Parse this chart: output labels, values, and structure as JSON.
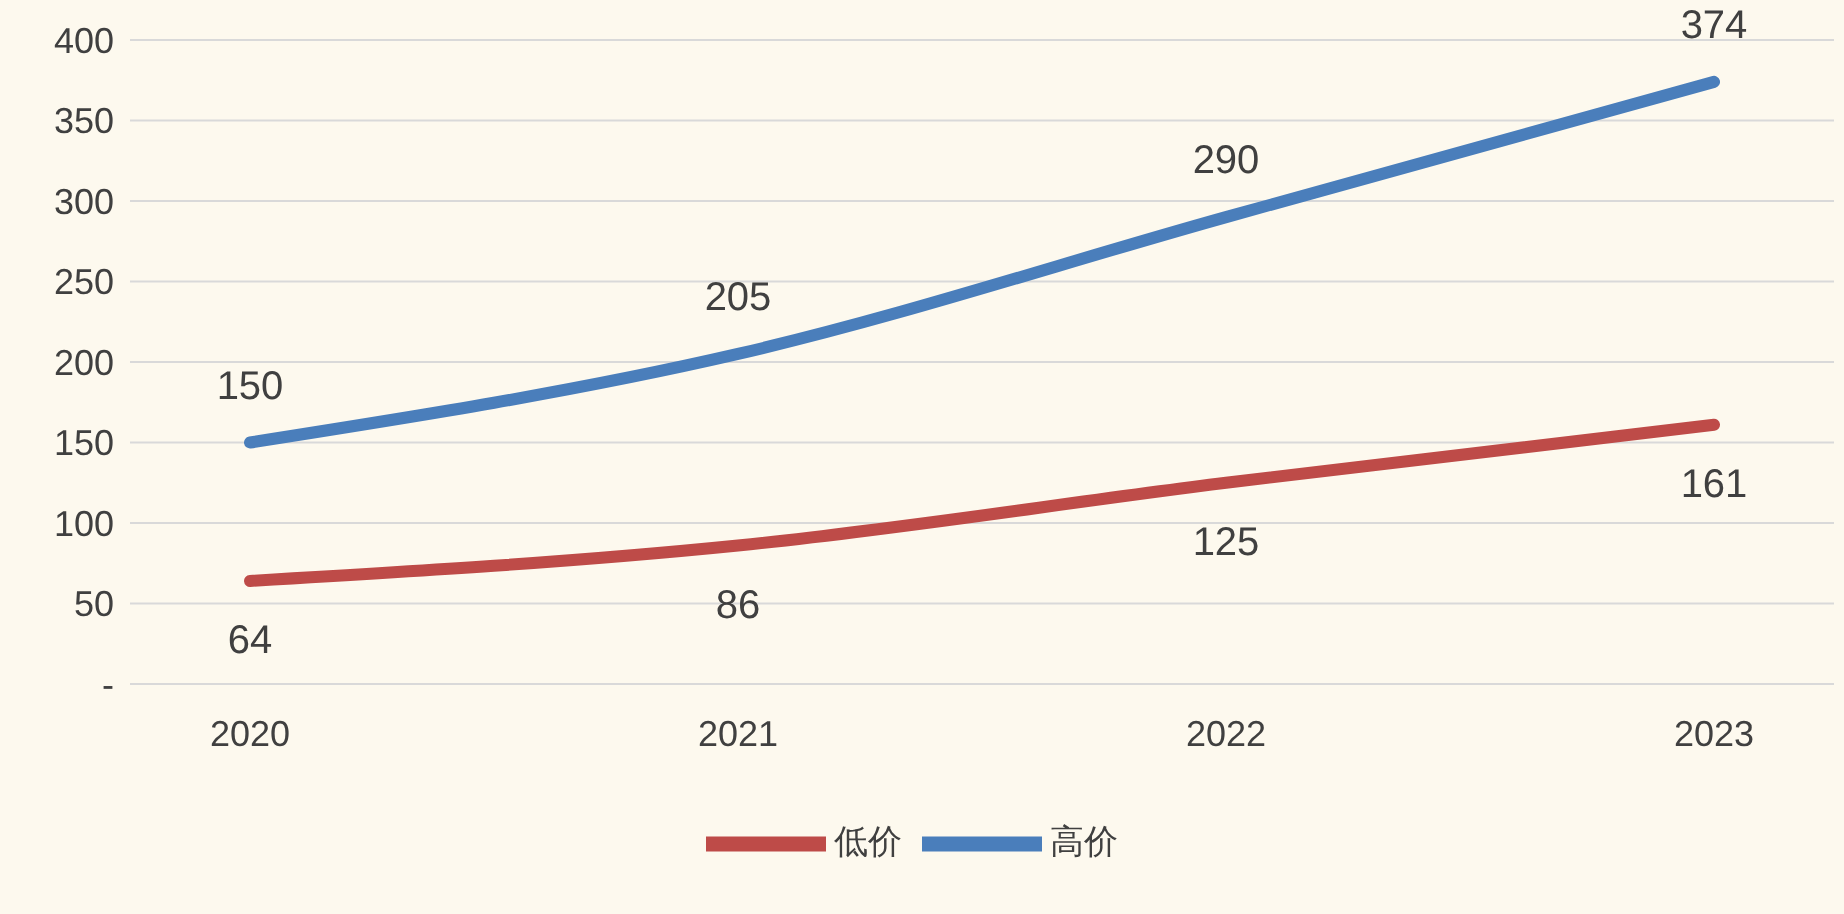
{
  "chart_data": {
    "type": "line",
    "categories": [
      "2020",
      "2021",
      "2022",
      "2023"
    ],
    "series": [
      {
        "name": "高价",
        "color": "#4a7ebb",
        "values": [
          150,
          205,
          290,
          374
        ]
      },
      {
        "name": "低价",
        "color": "#be4b48",
        "values": [
          64,
          86,
          125,
          161
        ]
      }
    ],
    "ylim": [
      0,
      400
    ],
    "yticks": [
      {
        "value": 0,
        "label": "-"
      },
      50,
      100,
      150,
      200,
      250,
      300,
      350,
      400
    ],
    "grid": "y",
    "legend": "bottom",
    "data_labels": true,
    "marker": "none",
    "line_style": "solid"
  }
}
